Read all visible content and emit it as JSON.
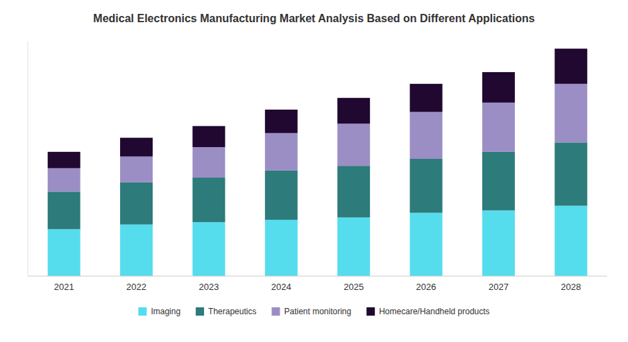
{
  "chart_data": {
    "type": "bar",
    "stacked": true,
    "title": "Medical Electronics Manufacturing Market Analysis Based on Different Applications",
    "categories": [
      "2021",
      "2022",
      "2023",
      "2024",
      "2025",
      "2026",
      "2027",
      "2028"
    ],
    "series": [
      {
        "name": "Imaging",
        "color": "#55DDEE",
        "values": [
          20,
          22,
          23,
          24,
          25,
          27,
          28,
          30
        ]
      },
      {
        "name": "Therapeutics",
        "color": "#2D7B7B",
        "values": [
          16,
          18,
          19,
          21,
          22,
          23,
          25,
          27
        ]
      },
      {
        "name": "Patient monitoring",
        "color": "#9B8EC4",
        "values": [
          10,
          11,
          13,
          16,
          18,
          20,
          21,
          25
        ]
      },
      {
        "name": "Homecare/Handheld products",
        "color": "#200830",
        "values": [
          7,
          8,
          9,
          10,
          11,
          12,
          13,
          15
        ]
      }
    ],
    "ylim": [
      0,
      100
    ],
    "yticks": [],
    "grid": false,
    "legend": "bottom",
    "tick_labels": "x"
  }
}
